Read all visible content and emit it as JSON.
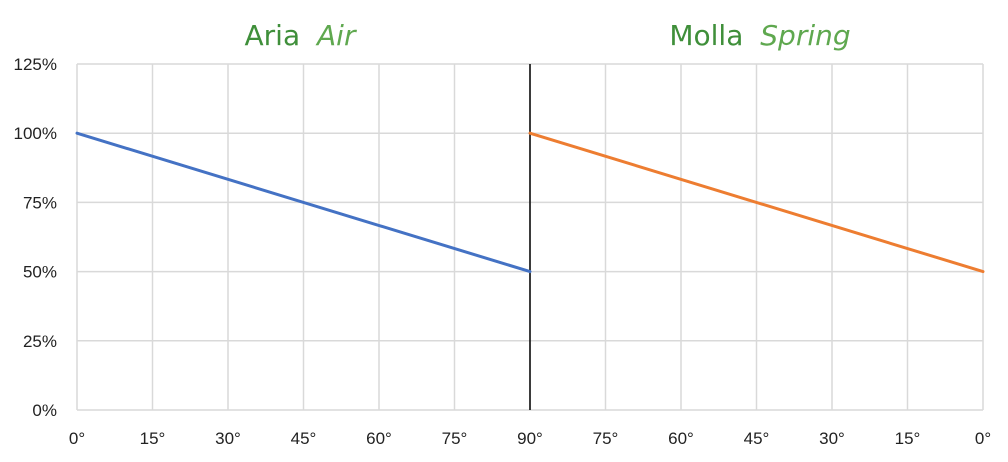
{
  "chart_data": {
    "type": "line",
    "titles": [
      {
        "main": "Aria",
        "italic": "Air"
      },
      {
        "main": "Molla",
        "italic": "Spring"
      }
    ],
    "x_tick_labels": [
      "0°",
      "15°",
      "30°",
      "45°",
      "60°",
      "75°",
      "90°",
      "75°",
      "60°",
      "45°",
      "30°",
      "15°",
      "0°"
    ],
    "y_tick_labels": [
      "0%",
      "25%",
      "50%",
      "75%",
      "100%",
      "125%"
    ],
    "ylim": [
      0,
      125
    ],
    "y_ticks": [
      0,
      25,
      50,
      75,
      100,
      125
    ],
    "grid": true,
    "panels": [
      {
        "x": [
          0,
          90
        ],
        "y": [
          100,
          50
        ],
        "color": "#4472c4"
      },
      {
        "x": [
          90,
          0
        ],
        "y": [
          100,
          50
        ],
        "color": "#ed7d31"
      }
    ],
    "divider_color": "#000000"
  }
}
